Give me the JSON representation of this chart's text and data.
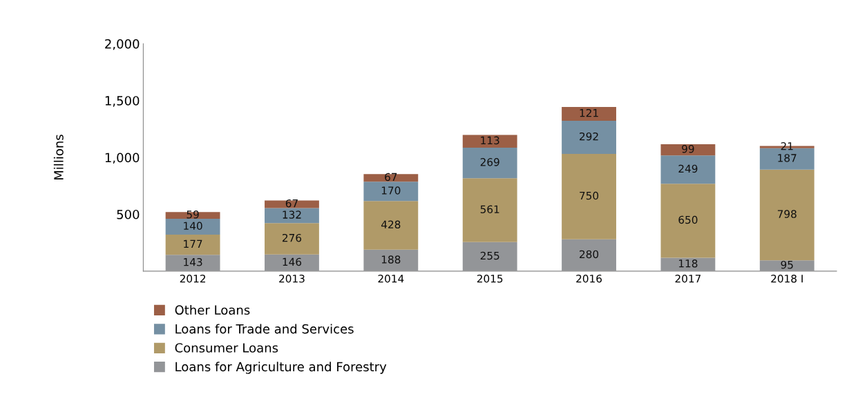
{
  "chart_data": {
    "type": "bar",
    "stacked": true,
    "ylabel": "Millions",
    "categories": [
      "2012",
      "2013",
      "2014",
      "2015",
      "2016",
      "2017",
      "2018 I"
    ],
    "series": [
      {
        "name": "Loans for Agriculture and Forestry",
        "color": "#939598",
        "values": [
          143,
          146,
          188,
          255,
          280,
          118,
          95
        ]
      },
      {
        "name": "Consumer Loans",
        "color": "#b09a68",
        "values": [
          177,
          276,
          428,
          561,
          750,
          650,
          798
        ]
      },
      {
        "name": "Loans for Trade and Services",
        "color": "#7590a3",
        "values": [
          140,
          132,
          170,
          269,
          292,
          249,
          187
        ]
      },
      {
        "name": "Other Loans",
        "color": "#9c5f46",
        "values": [
          59,
          67,
          67,
          113,
          121,
          99,
          21
        ]
      }
    ],
    "ylim": [
      0,
      2000
    ],
    "yticks": [
      {
        "value": 500,
        "label": "500"
      },
      {
        "value": 1000,
        "label": "1,000"
      },
      {
        "value": 1500,
        "label": "1,500"
      },
      {
        "value": 2000,
        "label": "2,000"
      }
    ],
    "data_labels": true,
    "legend": "bottom left",
    "grid": false
  }
}
